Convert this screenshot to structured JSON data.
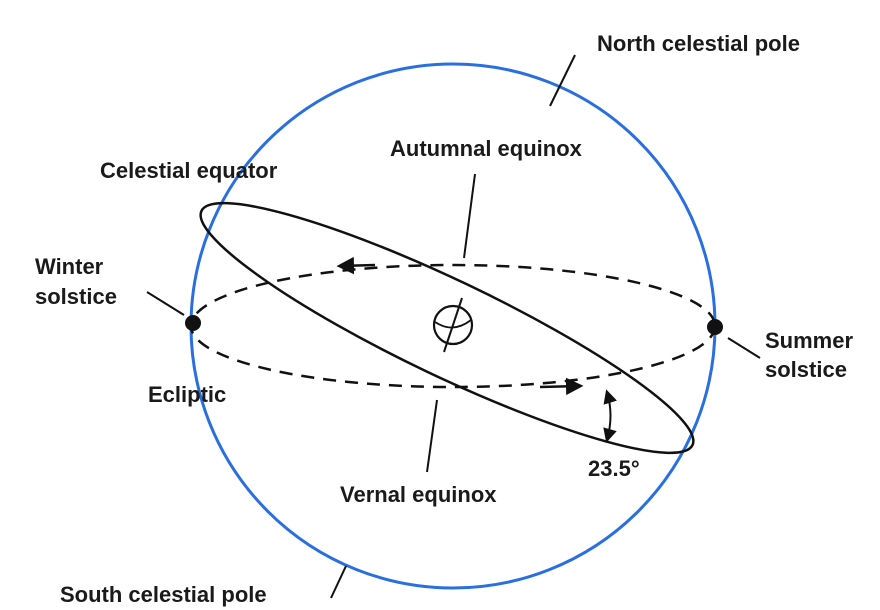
{
  "labels": {
    "north_pole": "North celestial pole",
    "autumnal_equinox": "Autumnal equinox",
    "celestial_equator": "Celestial equator",
    "winter_solstice": [
      "Winter",
      "solstice"
    ],
    "summer_solstice": [
      "Summer",
      "solstice"
    ],
    "ecliptic": "Ecliptic",
    "angle": "23.5°",
    "vernal_equinox": "Vernal equinox",
    "south_pole": "South celestial pole"
  }
}
